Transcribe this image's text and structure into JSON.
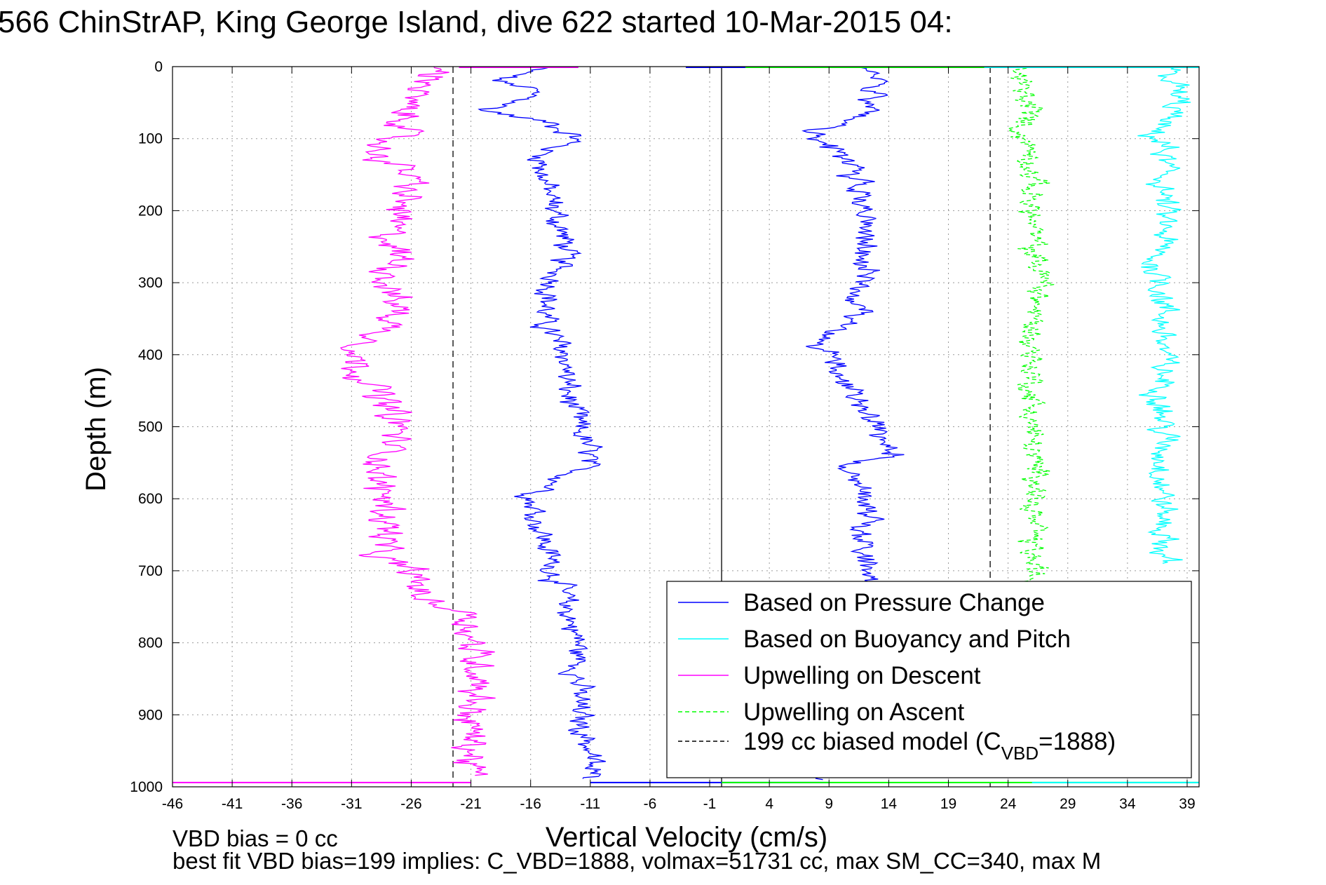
{
  "chart_data": {
    "type": "line",
    "title": "566 ChinStrAP, King George Island, dive 622 started 10-Mar-2015 04:",
    "xlabel": "Vertical Velocity (cm/s)",
    "ylabel": "Depth (m)",
    "xlim": [
      -46,
      40
    ],
    "ylim": [
      0,
      1000
    ],
    "y_reversed": true,
    "grid": true,
    "x_ticks": [
      -46,
      -41,
      -36,
      -31,
      -26,
      -21,
      -16,
      -11,
      -6,
      -1,
      4,
      9,
      14,
      19,
      24,
      29,
      34,
      39
    ],
    "x_tick_labels": [
      "-46",
      "-41",
      "-36",
      "-31",
      "-26",
      "-21",
      "-16",
      "-11",
      "-6",
      "-1",
      "4",
      "9",
      "14",
      "19",
      "24",
      "29",
      "34",
      "39"
    ],
    "y_ticks": [
      0,
      100,
      200,
      300,
      400,
      500,
      600,
      700,
      800,
      900,
      1000
    ],
    "y_tick_labels": [
      "0",
      "100",
      "200",
      "300",
      "400",
      "500",
      "600",
      "700",
      "800",
      "900",
      "1000"
    ],
    "legend_position": "lower-right",
    "legend": [
      {
        "label": "Based on Pressure Change",
        "color": "#0000ff",
        "dash": false
      },
      {
        "label": "Based on Buoyancy and Pitch",
        "color": "#00ffff",
        "dash": false
      },
      {
        "label": "Upwelling on Descent",
        "color": "#ff00ff",
        "dash": false
      },
      {
        "label": "Upwelling on Ascent",
        "color": "#00ff00",
        "dash": true
      },
      {
        "label_main": "199 cc biased model (C",
        "label_sub": "VBD",
        "label_end": "=1888)",
        "color": "#000000",
        "dash": true
      }
    ],
    "vertical_lines": [
      {
        "x": 0,
        "style": "solid",
        "color": "#000000"
      },
      {
        "x": -22.5,
        "style": "dashed",
        "color": "#000000"
      },
      {
        "x": 22.5,
        "style": "dashed",
        "color": "#000000"
      }
    ],
    "series": [
      {
        "name": "Based on Pressure Change",
        "color": "#0000ff",
        "dash": false,
        "descent": {
          "depth": [
            0,
            10,
            20,
            30,
            40,
            50,
            60,
            70,
            80,
            90,
            100,
            120,
            150,
            200,
            250,
            300,
            350,
            380,
            400,
            450,
            500,
            540,
            560,
            600,
            650,
            700,
            750,
            800,
            850,
            900,
            950,
            980,
            990
          ],
          "v": [
            -15,
            -17,
            -19,
            -16,
            -16,
            -17,
            -20,
            -17,
            -14,
            -13,
            -12,
            -15,
            -15,
            -14,
            -13,
            -14,
            -15,
            -14,
            -13,
            -13,
            -12,
            -11,
            -12,
            -16,
            -15,
            -14,
            -13,
            -12,
            -12,
            -12,
            -11,
            -11,
            -11
          ]
        },
        "ascent": {
          "depth": [
            990,
            950,
            900,
            850,
            800,
            750,
            715,
            700,
            650,
            600,
            550,
            540,
            500,
            450,
            420,
            400,
            390,
            350,
            300,
            250,
            200,
            150,
            120,
            100,
            90,
            80,
            70,
            60,
            50,
            40,
            30,
            20,
            10,
            0
          ],
          "v": [
            9,
            11,
            11,
            11,
            11,
            11,
            12,
            12,
            12,
            12,
            11,
            14,
            13,
            11,
            10,
            9,
            8,
            11,
            12,
            12,
            12,
            11,
            10,
            8,
            7,
            10,
            12,
            13,
            12,
            13,
            11,
            13,
            12,
            12
          ]
        },
        "noise": 0.8
      },
      {
        "name": "Based on Buoyancy and Pitch",
        "color": "#00ffff",
        "dash": false,
        "profile": {
          "depth": [
            0,
            30,
            60,
            90,
            110,
            150,
            200,
            240,
            270,
            300,
            350,
            400,
            450,
            500,
            550,
            600,
            650,
            690
          ],
          "v": [
            37,
            38,
            38,
            36,
            37,
            37,
            37,
            37,
            36,
            37,
            37,
            37,
            37,
            37,
            37,
            37,
            37,
            37
          ]
        },
        "noise": 0.9
      },
      {
        "name": "Upwelling on Descent",
        "color": "#ff00ff",
        "dash": false,
        "profile": {
          "depth": [
            0,
            20,
            40,
            60,
            80,
            100,
            120,
            150,
            200,
            230,
            270,
            300,
            340,
            380,
            400,
            450,
            500,
            540,
            575,
            600,
            650,
            680,
            700,
            740,
            760,
            800,
            850,
            900,
            950,
            985
          ],
          "v": [
            -24,
            -24,
            -26,
            -27,
            -26,
            -28,
            -29,
            -26,
            -27,
            -28,
            -27,
            -28,
            -27,
            -29,
            -31,
            -29,
            -27,
            -28,
            -29,
            -28,
            -28,
            -29,
            -26,
            -25,
            -21,
            -21,
            -20,
            -21,
            -21,
            -21
          ]
        },
        "noise": 1.1
      },
      {
        "name": "Upwelling on Ascent",
        "color": "#00ff00",
        "dash": true,
        "profile": {
          "depth": [
            0,
            30,
            60,
            90,
            120,
            150,
            200,
            250,
            300,
            350,
            400,
            450,
            500,
            550,
            580,
            600,
            650,
            700,
            720
          ],
          "v": [
            25,
            25,
            26,
            25,
            26,
            26,
            26,
            26,
            27,
            26,
            26,
            26,
            26,
            26,
            27,
            26,
            26,
            26,
            26
          ]
        },
        "noise": 0.8
      }
    ],
    "surface_spikes": [
      {
        "depth": 1,
        "v_from": -22,
        "v_to": -12,
        "color": "#ff00ff"
      },
      {
        "depth": 1,
        "v_from": -3,
        "v_to": 2,
        "color": "#0000ff"
      },
      {
        "depth": 1,
        "v_from": 2,
        "v_to": 33,
        "color": "#00ff00"
      },
      {
        "depth": 1,
        "v_from": 22,
        "v_to": 40,
        "color": "#00ffff"
      },
      {
        "depth": 994,
        "v_from": -46,
        "v_to": -21,
        "color": "#ff00ff"
      },
      {
        "depth": 994,
        "v_from": -11,
        "v_to": 9,
        "color": "#0000ff"
      },
      {
        "depth": 994,
        "v_from": 0,
        "v_to": 40,
        "color": "#00ff00"
      },
      {
        "depth": 994,
        "v_from": 26,
        "v_to": 40,
        "color": "#00ffff"
      }
    ],
    "annotations": [
      "VBD bias = 0 cc",
      "best fit VBD bias=199 implies: C_VBD=1888, volmax=51731 cc, max SM_CC=340, max M"
    ]
  }
}
